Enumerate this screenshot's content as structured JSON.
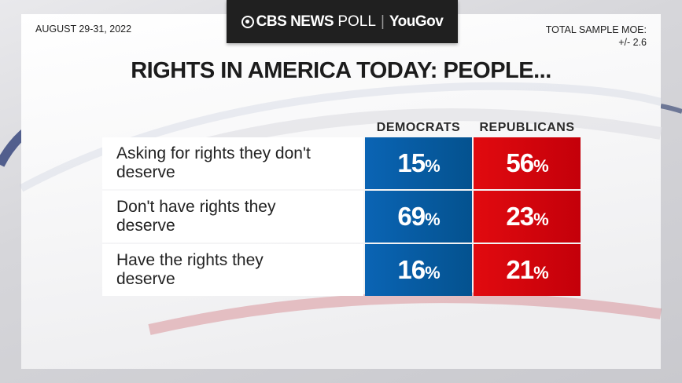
{
  "header": {
    "date": "AUGUST 29-31, 2022",
    "logo_cbs": "CBS NEWS",
    "logo_poll": "POLL",
    "logo_partner": "YouGov",
    "moe_label": "TOTAL SAMPLE MOE:",
    "moe_value": "+/- 2.6"
  },
  "colors": {
    "democrats": "#0a5fa8",
    "republicans": "#d9000c"
  },
  "chart_data": {
    "type": "table",
    "title": "RIGHTS IN AMERICA TODAY: PEOPLE...",
    "columns": [
      "DEMOCRATS",
      "REPUBLICANS"
    ],
    "rows": [
      {
        "label": "Asking for rights they don't deserve",
        "values": [
          "15",
          "56"
        ]
      },
      {
        "label": "Don't have rights they deserve",
        "values": [
          "69",
          "23"
        ]
      },
      {
        "label": "Have the rights they deserve",
        "values": [
          "16",
          "21"
        ]
      }
    ],
    "unit": "%"
  }
}
